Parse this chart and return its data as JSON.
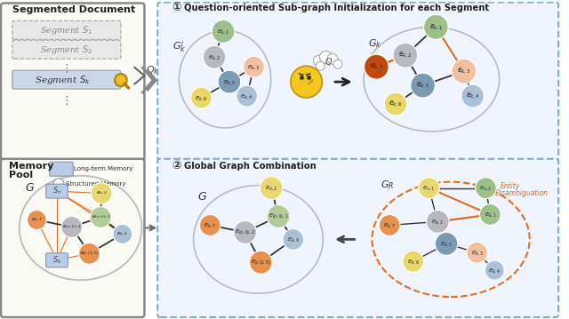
{
  "bg": "#ffffff",
  "panel_left_bg": "#fafaf5",
  "panel_right_bg": "#f0f4ff",
  "panel_right_edge": "#7aaadd",
  "doc_edge": "#777777",
  "node_green": "#9dc08b",
  "node_gray": "#b8b8c0",
  "node_blue_gray": "#7b9bb5",
  "node_yellow": "#e8d86a",
  "node_orange": "#e89050",
  "node_dark_orange": "#bf4a10",
  "node_peach": "#f0c0a0",
  "node_light_blue": "#a8c0d8",
  "node_light_green": "#b8d4a0",
  "node_sn_blue": "#a8c0e0",
  "seg1_label": "Segment $S_1$",
  "seg2_label": "Segment $S_2$",
  "segk_label": "Segment $S_k$",
  "doc_title": "Segmented Document",
  "mem_title1": "Memory",
  "mem_title2": "Pool",
  "legend1": "Long-term Memory",
  "legend2": "Structured Memory",
  "title1": "Question-oriented Sub-graph Initialization for each Segment",
  "title2": "Global Graph Combination",
  "Qk": "$Q_k$",
  "Gk_label": "$G_k$",
  "Gpk_label": "$G_k'$",
  "GR_label": "$G_R$",
  "G_label": "$G$",
  "entity_disambig": "Entity\nDisambiguation"
}
